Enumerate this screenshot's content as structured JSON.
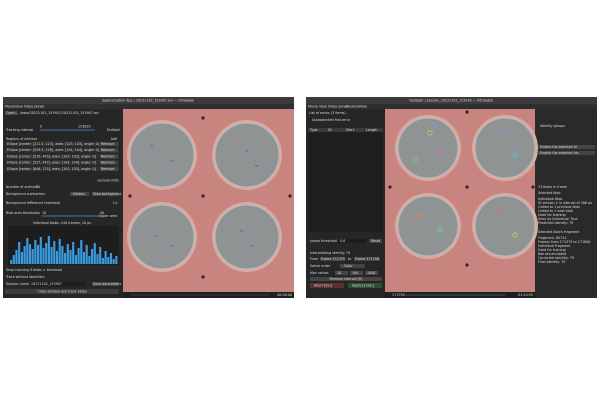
{
  "left_window": {
    "title": "Segmentation App | 20231102_153907.avi — Ultralabel",
    "menu": [
      "Movie",
      "View",
      "Video player"
    ],
    "open_button": "Open...",
    "file_path": "/data/20231102_153907/20231102_153907.avi",
    "tracking_interval_label": "Tracking interval",
    "interval_low": "0",
    "interval_high": "153620",
    "multiple": "Multiple",
    "regions_label": "Regions of interest",
    "add": "Add",
    "regions": [
      "Ellipse [center: [211.5, 123], axes: [103, 103], angle: 0]",
      "Ellipse [center: [529.5, 126], axes: [104, 104], angle: 0]",
      "Ellipse [center: [210, 445], axes: [103, 103], angle: 0]",
      "Ellipse [center: [527, 447], axes: [104, 104], angle: 0]",
      "Ellipse [center: [846, 125], axes: [103, 103], angle: 0]"
    ],
    "remove": "Remove",
    "exclude_rois": "Exclude ROIs",
    "number_of_animals": "Number of animals",
    "animals_value": "30",
    "background_subtraction": "Background subtraction",
    "median": "Median",
    "view_background": "View background",
    "bg_threshold_label": "Background difference threshold",
    "bg_threshold_value": "14",
    "blob_area_label": "Blob area thresholds",
    "area_low": "10",
    "area_high": "90",
    "upper_area": "Upper area",
    "histogram_title": "Individual blobs: 244 frames, 10 px",
    "histogram": [
      4,
      9,
      14,
      22,
      12,
      18,
      26,
      20,
      15,
      24,
      19,
      27,
      16,
      21,
      28,
      17,
      23,
      13,
      25,
      18,
      11,
      20,
      14,
      22,
      9,
      16,
      24,
      12,
      19,
      8,
      15,
      21,
      10,
      17,
      6,
      13,
      7,
      11,
      5,
      8
    ],
    "snap_tracking": "Snap tracking if blobs > threshold",
    "track_without_id": "Track without identities",
    "session_name_label": "Session name",
    "session_name": "20231102_153907",
    "save_params": "Save parameters",
    "close_button": "Close window and track video",
    "time": "00:00:00"
  },
  "right_window": {
    "title": "Validator | session_20231102_153918 — Ultralabel",
    "menu": [
      "Movie",
      "View",
      "Video player",
      "Session",
      "Show"
    ],
    "errors_title": "List of errors (3 items)",
    "autoselect": "Autoselected first error",
    "table_header": [
      "Type",
      "ID",
      "Start",
      "Length"
    ],
    "jumps_threshold": "Jumps threshold",
    "jumps_value": "0.8",
    "reset": "Reset",
    "interpolating": "Interpolating identity 79",
    "from_label": "From",
    "from_frame": "Frame 171379",
    "to_label": "to",
    "to_frame": "Frame 171708",
    "solver_order": "Solver order",
    "color": "Color",
    "max_values": "Max values",
    "max_options": [
      "10",
      "100",
      "1000"
    ],
    "remove_interval": "Remove interval [R]",
    "abort": "Abort [Esc]",
    "apply": "Apply [Enter]",
    "frame": "171758",
    "time": "01:24:35",
    "identity_groups": "Identity groups",
    "side_buttons": [
      "Enable the selected id",
      "Enable the selected ids"
    ],
    "blobs_in_frame": "13 blobs in frame",
    "selected_blob": "Selected blob",
    "blob_info": [
      "Individual Blob",
      "ID version 4 in interval of 286 px",
      "Linked to 1 previous blob",
      "Linked to 1 next blob",
      "Used for training",
      "Seen by individual: True",
      "Predicted identity: 79"
    ],
    "selected_fragment": "Selected blob's fragment",
    "fragment_info": [
      "Fragment: 80724",
      "Frames from 171379 to 171808",
      "Individual fragment",
      "Used for training",
      "Not accumulated",
      "Corrected identity: 79",
      "Final identity: 79"
    ]
  }
}
